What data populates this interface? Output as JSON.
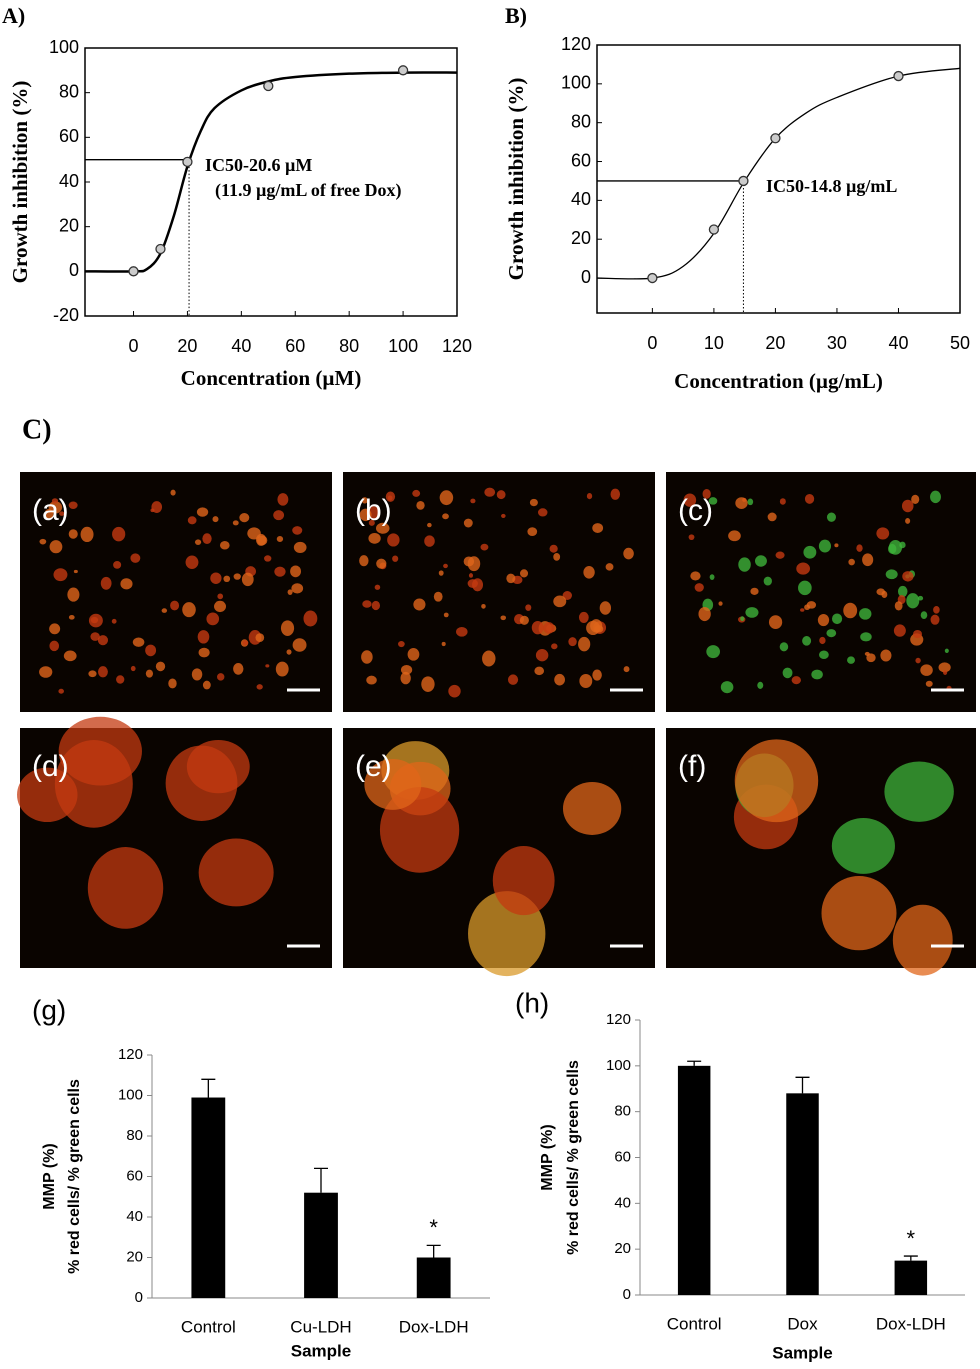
{
  "chart_data": [
    {
      "type": "scatter",
      "panel": "A)",
      "xlabel": "Concentration (µM)",
      "ylabel": "Growth inhibition (%)",
      "x": [
        0,
        10,
        20,
        50,
        100
      ],
      "values": [
        0,
        10,
        49,
        83,
        90
      ],
      "curve": {
        "x": [
          -18,
          0,
          5,
          10,
          15,
          20,
          25,
          30,
          40,
          50,
          60,
          80,
          100,
          120
        ],
        "values": [
          0,
          0,
          1,
          8,
          25,
          47,
          63,
          73,
          81,
          85,
          87,
          88.5,
          89,
          89
        ]
      },
      "ic50": {
        "x": 20.6,
        "y": 50,
        "labels": [
          "IC50-20.6 µM",
          "(11.9 µg/mL of free Dox)"
        ]
      },
      "xlim": [
        -18,
        120
      ],
      "xticks": [
        0,
        20,
        40,
        60,
        80,
        100,
        120
      ],
      "ylim": [
        -20,
        100
      ],
      "yticks": [
        -20,
        0,
        20,
        40,
        60,
        80,
        100
      ]
    },
    {
      "type": "scatter",
      "panel": "B)",
      "xlabel": "Concentration (µg/mL)",
      "ylabel": "Growth inhibition (%)",
      "x": [
        0,
        10,
        14.8,
        20,
        40
      ],
      "values": [
        0,
        25,
        50,
        72,
        104
      ],
      "curve": {
        "x": [
          -9,
          0,
          5,
          10,
          15,
          20,
          25,
          30,
          40,
          50
        ],
        "values": [
          0,
          0,
          6,
          23,
          50,
          72,
          85,
          93,
          104,
          108
        ]
      },
      "ic50": {
        "x": 14.8,
        "y": 50,
        "labels": [
          "IC50-14.8 µg/mL"
        ]
      },
      "xlim": [
        -9,
        50
      ],
      "xticks": [
        0,
        10,
        20,
        30,
        40,
        50
      ],
      "ylim": [
        -18,
        120
      ],
      "yticks": [
        0,
        20,
        40,
        60,
        80,
        100,
        120
      ]
    },
    {
      "type": "bar",
      "panel": "(g)",
      "xlabel": "Sample",
      "ylabel": [
        "MMP (%)",
        "% red cells/ % green cells"
      ],
      "categories": [
        "Control",
        "Cu-LDH",
        "Dox-LDH"
      ],
      "values": [
        99,
        52,
        20
      ],
      "errors": [
        9,
        12,
        6
      ],
      "significance": [
        null,
        null,
        "*"
      ],
      "color": "#000000",
      "ylim": [
        0,
        120
      ],
      "yticks": [
        0,
        20,
        40,
        60,
        80,
        100,
        120
      ]
    },
    {
      "type": "bar",
      "panel": "(h)",
      "xlabel": "Sample",
      "ylabel": [
        "MMP (%)",
        "% red cells/ % green cells"
      ],
      "categories": [
        "Control",
        "Dox",
        "Dox-LDH"
      ],
      "values": [
        100,
        88,
        15
      ],
      "errors": [
        2,
        7,
        2
      ],
      "significance": [
        null,
        null,
        "*"
      ],
      "color": "#000000",
      "ylim": [
        0,
        120
      ],
      "yticks": [
        0,
        20,
        40,
        60,
        80,
        100,
        120
      ]
    }
  ],
  "micrographs": {
    "title": "C)",
    "panels": [
      "(a)",
      "(b)",
      "(c)",
      "(d)",
      "(e)",
      "(f)"
    ]
  }
}
